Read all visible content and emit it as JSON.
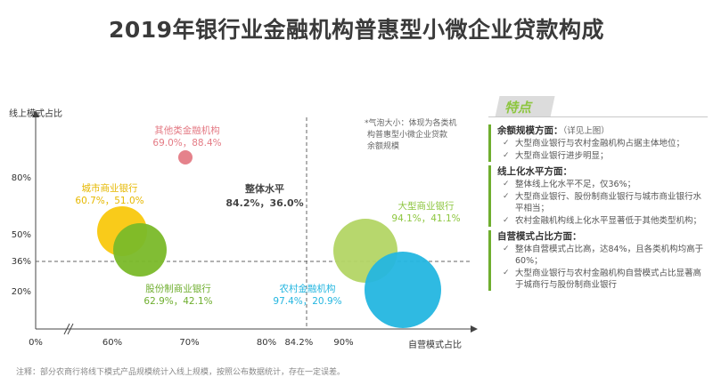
{
  "title": "2019年银行业金融机构普惠型小微企业贷款构成",
  "chart_data": {
    "type": "bubble",
    "ylabel": "线上模式占比",
    "xlabel": "自营模式占比",
    "x_ticks": [
      "0%",
      "60%",
      "70%",
      "80%",
      "84.2%",
      "90%"
    ],
    "y_ticks": [
      "80%",
      "50%",
      "36%",
      "20%"
    ],
    "size_note": "*气泡大小：体现为各类机构普惠型小微企业贷款余额规模",
    "reference": {
      "label": "整体水平",
      "value_label": "84.2%，36.0%",
      "x": 84.2,
      "y": 36.0
    },
    "series": [
      {
        "name": "其他类金融机构",
        "value_label": "69.0%，88.4%",
        "x": 69.0,
        "y": 88.4,
        "color": "#e47b85"
      },
      {
        "name": "城市商业银行",
        "value_label": "60.7%，51.0%",
        "x": 60.7,
        "y": 51.0,
        "color": "#f9c80e"
      },
      {
        "name": "股份制商业银行",
        "value_label": "62.9%，42.1%",
        "x": 62.9,
        "y": 42.1,
        "color": "#7ab929"
      },
      {
        "name": "大型商业银行",
        "value_label": "94.1%，41.1%",
        "x": 94.1,
        "y": 41.1,
        "color": "#b3d565"
      },
      {
        "name": "农村金融机构",
        "value_label": "97.4%，20.9%",
        "x": 97.4,
        "y": 20.9,
        "color": "#24b6e0"
      }
    ]
  },
  "panel": {
    "heading": "特点",
    "sections": [
      {
        "title": "余额规模方面：",
        "note": "（详见上图）",
        "bullets": [
          "大型商业银行与农村金融机构占据主体地位；",
          "大型商业银行进步明显；"
        ]
      },
      {
        "title": "线上化水平方面：",
        "note": "",
        "bullets": [
          "整体线上化水平不足，仅36%；",
          "大型商业银行、股份制商业银行与城市商业银行水平相当；",
          "农村金融机构线上化水平显著低于其他类型机构；"
        ]
      },
      {
        "title": "自营模式占比方面：",
        "note": "",
        "bullets": [
          "整体自营模式占比高，达84%，且各类机构均高于60%；",
          "大型商业银行与农村金融机构自营模式占比显著高于城商行与股份制商业银行"
        ]
      }
    ]
  },
  "footnote": "注释：部分农商行将线下模式产品规模统计入线上规模，按照公布数据统计，存在一定误差。"
}
